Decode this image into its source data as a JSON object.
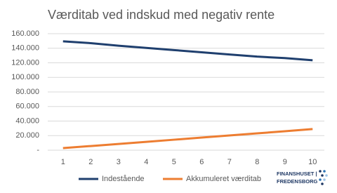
{
  "chart_data": {
    "type": "line",
    "title": "Værditab ved indskud med negativ rente",
    "x": [
      1,
      2,
      3,
      4,
      5,
      6,
      7,
      8,
      9,
      10
    ],
    "xlim": [
      0.5,
      10.5
    ],
    "xticks": [
      1,
      2,
      3,
      4,
      5,
      6,
      7,
      8,
      9,
      10
    ],
    "ylim": [
      0,
      160000
    ],
    "yticks": [
      {
        "value": 0,
        "label": "-"
      },
      {
        "value": 20000,
        "label": "20.000"
      },
      {
        "value": 40000,
        "label": "40.000"
      },
      {
        "value": 60000,
        "label": "60.000"
      },
      {
        "value": 80000,
        "label": "80.000"
      },
      {
        "value": 100000,
        "label": "100.000"
      },
      {
        "value": 120000,
        "label": "120.000"
      },
      {
        "value": 140000,
        "label": "140.000"
      },
      {
        "value": 160000,
        "label": "160.000"
      }
    ],
    "grid": true,
    "legend": "bottom",
    "series": [
      {
        "name": "Indestående",
        "color": "#1f3f6e",
        "values": [
          149500,
          147000,
          143500,
          140500,
          137500,
          134500,
          131500,
          128500,
          126500,
          123500
        ]
      },
      {
        "name": "Akkumuleret værditab",
        "color": "#ed7d31",
        "values": [
          2900,
          5700,
          8600,
          11500,
          14400,
          17300,
          20200,
          23100,
          26000,
          29000
        ]
      }
    ],
    "logo": [
      "FINANSHUSET |",
      "FREDENSBORG"
    ]
  }
}
